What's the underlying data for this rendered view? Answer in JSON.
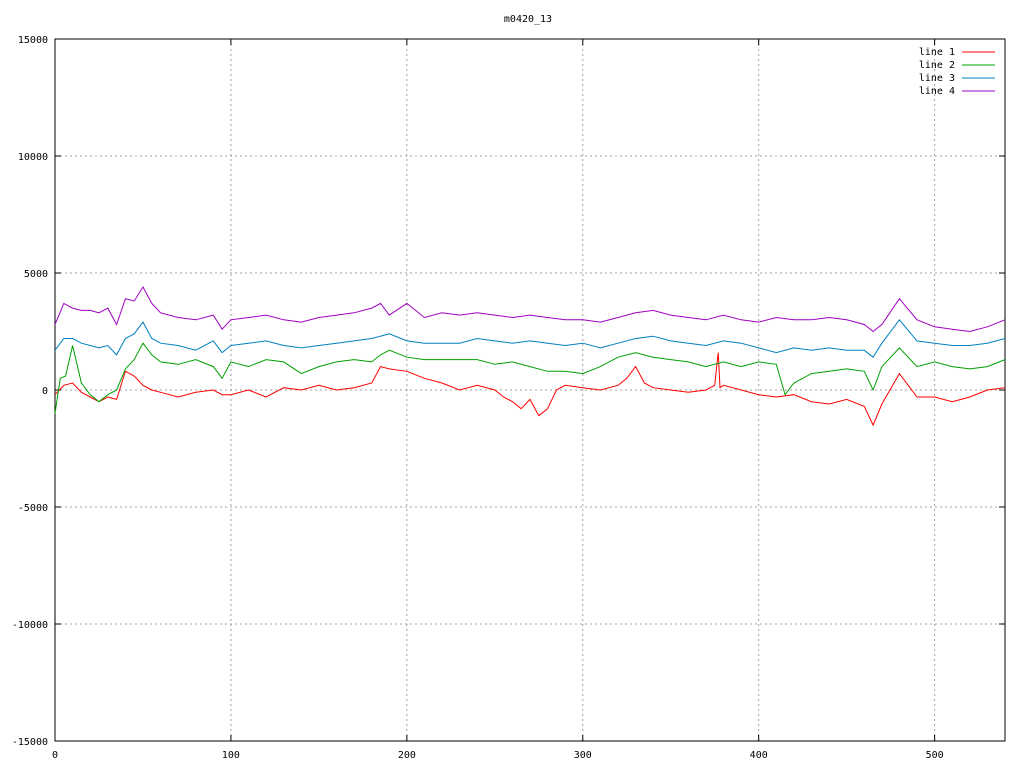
{
  "chart_data": {
    "type": "line",
    "title": "m0420_13",
    "xlim": [
      0,
      540
    ],
    "ylim": [
      -15000,
      15000
    ],
    "xticks": [
      0,
      100,
      200,
      300,
      400,
      500
    ],
    "yticks": [
      -15000,
      -10000,
      -5000,
      0,
      5000,
      10000,
      15000
    ],
    "grid": true,
    "legend_position": "top-right",
    "series": [
      {
        "name": "line 1",
        "color": "#ff0000",
        "x": [
          0,
          5,
          10,
          15,
          20,
          25,
          30,
          35,
          40,
          45,
          50,
          55,
          60,
          70,
          80,
          90,
          95,
          100,
          110,
          120,
          130,
          140,
          150,
          160,
          170,
          180,
          185,
          190,
          200,
          210,
          220,
          230,
          240,
          250,
          255,
          260,
          265,
          270,
          275,
          280,
          285,
          290,
          300,
          310,
          320,
          325,
          330,
          335,
          340,
          350,
          360,
          370,
          375,
          377,
          378,
          380,
          390,
          400,
          410,
          420,
          430,
          440,
          450,
          460,
          465,
          470,
          480,
          490,
          500,
          510,
          520,
          530,
          540
        ],
        "y": [
          -200,
          200,
          300,
          -100,
          -300,
          -500,
          -300,
          -400,
          800,
          600,
          200,
          0,
          -100,
          -300,
          -100,
          0,
          -200,
          -200,
          0,
          -300,
          100,
          0,
          200,
          0,
          100,
          300,
          1000,
          900,
          800,
          500,
          300,
          0,
          200,
          0,
          -300,
          -500,
          -800,
          -400,
          -1100,
          -800,
          0,
          200,
          100,
          0,
          200,
          500,
          1000,
          300,
          100,
          0,
          -100,
          0,
          200,
          1600,
          100,
          200,
          0,
          -200,
          -300,
          -200,
          -500,
          -600,
          -400,
          -700,
          -1500,
          -600,
          700,
          -300,
          -300,
          -500,
          -300,
          0,
          100
        ]
      },
      {
        "name": "line 2",
        "color": "#00a000",
        "x": [
          0,
          3,
          6,
          10,
          15,
          20,
          25,
          30,
          35,
          40,
          45,
          50,
          55,
          60,
          70,
          80,
          90,
          95,
          100,
          110,
          120,
          130,
          140,
          150,
          160,
          170,
          180,
          185,
          190,
          200,
          210,
          220,
          230,
          240,
          250,
          260,
          270,
          280,
          290,
          300,
          310,
          320,
          330,
          340,
          350,
          360,
          370,
          380,
          390,
          400,
          410,
          415,
          420,
          430,
          440,
          450,
          460,
          465,
          470,
          480,
          490,
          500,
          510,
          520,
          530,
          540
        ],
        "y": [
          -1000,
          500,
          600,
          1900,
          300,
          -200,
          -500,
          -200,
          0,
          900,
          1300,
          2000,
          1500,
          1200,
          1100,
          1300,
          1000,
          500,
          1200,
          1000,
          1300,
          1200,
          700,
          1000,
          1200,
          1300,
          1200,
          1500,
          1700,
          1400,
          1300,
          1300,
          1300,
          1300,
          1100,
          1200,
          1000,
          800,
          800,
          700,
          1000,
          1400,
          1600,
          1400,
          1300,
          1200,
          1000,
          1200,
          1000,
          1200,
          1100,
          -200,
          300,
          700,
          800,
          900,
          800,
          0,
          1000,
          1800,
          1000,
          1200,
          1000,
          900,
          1000,
          1300
        ]
      },
      {
        "name": "line 3",
        "color": "#0080c0",
        "x": [
          0,
          5,
          10,
          15,
          20,
          25,
          30,
          35,
          40,
          45,
          50,
          55,
          60,
          70,
          80,
          90,
          95,
          100,
          110,
          120,
          130,
          140,
          150,
          160,
          170,
          180,
          185,
          190,
          200,
          210,
          220,
          230,
          240,
          250,
          260,
          270,
          280,
          290,
          300,
          310,
          320,
          330,
          340,
          350,
          360,
          370,
          380,
          390,
          400,
          410,
          420,
          430,
          440,
          450,
          460,
          465,
          470,
          480,
          490,
          500,
          510,
          520,
          530,
          540
        ],
        "y": [
          1700,
          2200,
          2200,
          2000,
          1900,
          1800,
          1900,
          1500,
          2200,
          2400,
          2900,
          2200,
          2000,
          1900,
          1700,
          2100,
          1600,
          1900,
          2000,
          2100,
          1900,
          1800,
          1900,
          2000,
          2100,
          2200,
          2300,
          2400,
          2100,
          2000,
          2000,
          2000,
          2200,
          2100,
          2000,
          2100,
          2000,
          1900,
          2000,
          1800,
          2000,
          2200,
          2300,
          2100,
          2000,
          1900,
          2100,
          2000,
          1800,
          1600,
          1800,
          1700,
          1800,
          1700,
          1700,
          1400,
          2000,
          3000,
          2100,
          2000,
          1900,
          1900,
          2000,
          2200
        ]
      },
      {
        "name": "line 4",
        "color": "#a000c0",
        "x": [
          0,
          5,
          10,
          15,
          20,
          25,
          30,
          35,
          40,
          45,
          50,
          55,
          60,
          70,
          80,
          90,
          95,
          100,
          110,
          120,
          130,
          140,
          150,
          160,
          170,
          180,
          185,
          190,
          200,
          210,
          220,
          230,
          240,
          250,
          260,
          270,
          280,
          290,
          300,
          310,
          320,
          330,
          340,
          350,
          360,
          370,
          380,
          390,
          400,
          410,
          420,
          430,
          440,
          450,
          460,
          465,
          470,
          480,
          490,
          500,
          510,
          520,
          530,
          540
        ],
        "y": [
          2800,
          3700,
          3500,
          3400,
          3400,
          3300,
          3500,
          2800,
          3900,
          3800,
          4400,
          3700,
          3300,
          3100,
          3000,
          3200,
          2600,
          3000,
          3100,
          3200,
          3000,
          2900,
          3100,
          3200,
          3300,
          3500,
          3700,
          3200,
          3700,
          3100,
          3300,
          3200,
          3300,
          3200,
          3100,
          3200,
          3100,
          3000,
          3000,
          2900,
          3100,
          3300,
          3400,
          3200,
          3100,
          3000,
          3200,
          3000,
          2900,
          3100,
          3000,
          3000,
          3100,
          3000,
          2800,
          2500,
          2800,
          3900,
          3000,
          2700,
          2600,
          2500,
          2700,
          3000
        ]
      }
    ]
  }
}
